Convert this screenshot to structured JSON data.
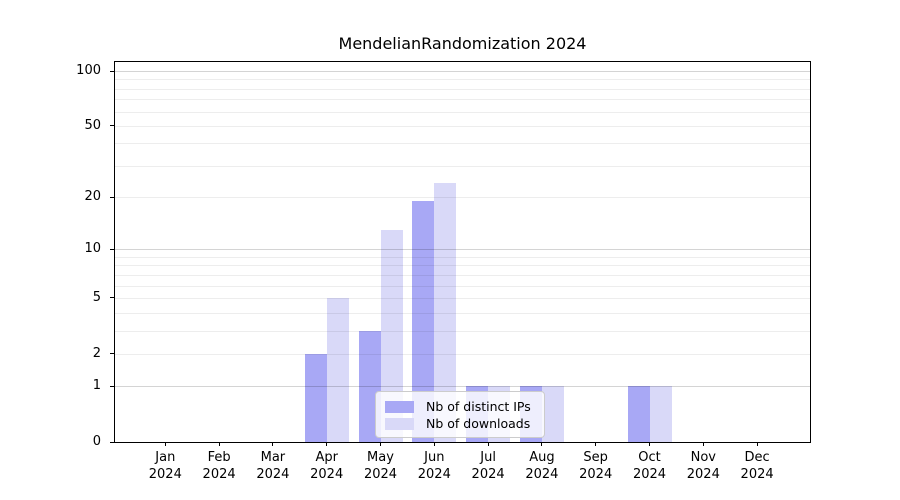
{
  "title": "MendelianRandomization 2024",
  "colors": {
    "bar_distinct_ips": "#a8a8f5",
    "bar_downloads": "#d9d9f8",
    "axis": "#000000",
    "grid_minor_rgba": "rgba(0,0,0,0.07)",
    "grid_major_rgba": "rgba(0,0,0,0.17)",
    "legend_border": "#cccccc",
    "legend_bg": "rgba(255,255,255,0.8)"
  },
  "chart_data": {
    "type": "bar",
    "title": "MendelianRandomization 2024",
    "xlabel": "",
    "ylabel": "",
    "categories": [
      "Jan 2024",
      "Feb 2024",
      "Mar 2024",
      "Apr 2024",
      "May 2024",
      "Jun 2024",
      "Jul 2024",
      "Aug 2024",
      "Sep 2024",
      "Oct 2024",
      "Nov 2024",
      "Dec 2024"
    ],
    "series": [
      {
        "name": "Nb of distinct IPs",
        "color": "#a8a8f5",
        "values": [
          0,
          0,
          0,
          2,
          3,
          19,
          1,
          1,
          0,
          1,
          0,
          0
        ]
      },
      {
        "name": "Nb of downloads",
        "color": "#d9d9f8",
        "values": [
          0,
          0,
          0,
          5,
          13,
          24,
          1,
          1,
          0,
          1,
          0,
          0
        ]
      }
    ],
    "y_scale": "log1p",
    "ylim": [
      0,
      100
    ],
    "y_ticks": [
      0,
      1,
      2,
      5,
      10,
      20,
      50,
      100
    ],
    "gridlines_minor": [
      2,
      3,
      4,
      5,
      6,
      7,
      8,
      9,
      20,
      30,
      40,
      50,
      60,
      70,
      80,
      90
    ],
    "gridlines_major": [
      1,
      10,
      100
    ],
    "grid": "on, drawn above bars",
    "legend_position": "lower center, inside plot",
    "legend_entries": [
      "Nb of distinct IPs",
      "Nb of downloads"
    ]
  }
}
